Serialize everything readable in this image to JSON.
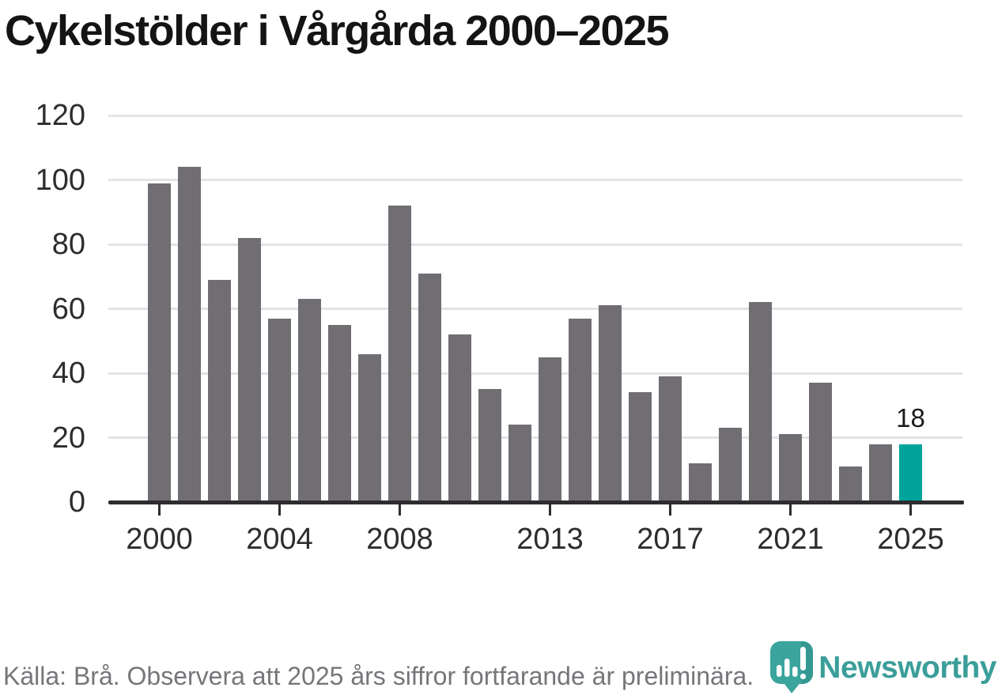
{
  "title": "Cykelstölder i Vårgårda 2000–2025",
  "footer": {
    "source_note": "Källa: Brå. Observera att 2025 års siffror fortfarande är preliminära.",
    "brand": "Newsworthy"
  },
  "colors": {
    "bar": "#706d73",
    "highlight": "#00a49b",
    "grid": "#e3e3e3",
    "axis": "#2e2c2e",
    "title_text": "#141414",
    "tick_text": "#2d2d2d",
    "footer_text": "#77757a",
    "brand_teal": "#3b9e99",
    "logo_pin": "#3aa49d"
  },
  "chart_data": {
    "type": "bar",
    "title": "Cykelstölder i Vårgårda 2000–2025",
    "xlabel": "",
    "ylabel": "",
    "x": [
      2000,
      2001,
      2002,
      2003,
      2004,
      2005,
      2006,
      2007,
      2008,
      2009,
      2010,
      2011,
      2012,
      2013,
      2014,
      2015,
      2016,
      2017,
      2018,
      2019,
      2020,
      2021,
      2022,
      2023,
      2024,
      2025
    ],
    "values": [
      99,
      104,
      69,
      82,
      57,
      63,
      55,
      46,
      92,
      71,
      52,
      35,
      24,
      45,
      57,
      61,
      34,
      39,
      12,
      23,
      62,
      21,
      37,
      11,
      18,
      18
    ],
    "highlight_index": 25,
    "highlight_label": "18",
    "ylim": [
      0,
      120
    ],
    "y_ticks": [
      0,
      20,
      40,
      60,
      80,
      100,
      120
    ],
    "x_ticks": [
      2000,
      2004,
      2008,
      2013,
      2017,
      2021,
      2025
    ],
    "grid": "horizontal",
    "legend": "none"
  }
}
